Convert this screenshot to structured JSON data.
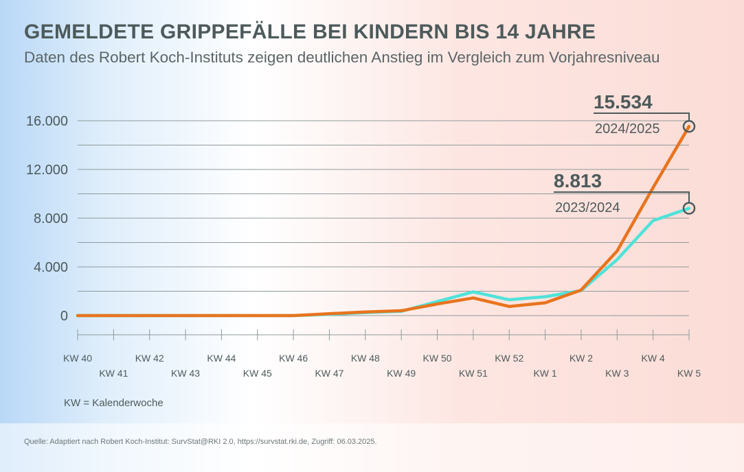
{
  "title": "GEMELDETE GRIPPEFÄLLE BEI KINDERN BIS 14 JAHRE",
  "subtitle": "Daten des Robert Koch-Instituts zeigen deutlichen Anstieg im Vergleich zum Vorjahresniveau",
  "note": "KW = Kalenderwoche",
  "source": "Quelle: Adaptiert nach Robert Koch-Institut: SurvStat@RKI 2.0, https://survstat.rki.de, Zugriff: 06.03.2025.",
  "colors": {
    "series_2024_2025": "#e8741e",
    "series_2023_2024": "#4fe3d9",
    "text": "#4d5a5b",
    "grid": "#8e9a9b"
  },
  "chart_data": {
    "type": "line",
    "categories": [
      "KW 40",
      "KW 41",
      "KW 42",
      "KW 43",
      "KW 44",
      "KW 45",
      "KW 46",
      "KW 47",
      "KW 48",
      "KW 49",
      "KW 50",
      "KW 51",
      "KW 52",
      "KW 1",
      "KW 2",
      "KW 3",
      "KW 4",
      "KW 5"
    ],
    "ytick_labels": [
      "0",
      "4.000",
      "8.000",
      "12.000",
      "16.000"
    ],
    "ytick_values": [
      0,
      4000,
      8000,
      12000,
      16000
    ],
    "ylim": [
      -1500,
      16500
    ],
    "grid": true,
    "series": [
      {
        "name": "2023/2024",
        "color": "#4fe3d9",
        "values": [
          0,
          0,
          0,
          0,
          0,
          0,
          0,
          100,
          250,
          350,
          1150,
          1950,
          1300,
          1550,
          2050,
          4600,
          7800,
          8813
        ]
      },
      {
        "name": "2024/2025",
        "color": "#e8741e",
        "values": [
          0,
          0,
          0,
          0,
          0,
          0,
          0,
          150,
          300,
          400,
          950,
          1450,
          750,
          1050,
          2100,
          5300,
          10500,
          15534
        ]
      }
    ],
    "annotations": [
      {
        "series": "2024/2025",
        "value_label": "15.534",
        "series_label": "2024/2025"
      },
      {
        "series": "2023/2024",
        "value_label": "8.813",
        "series_label": "2023/2024"
      }
    ]
  }
}
